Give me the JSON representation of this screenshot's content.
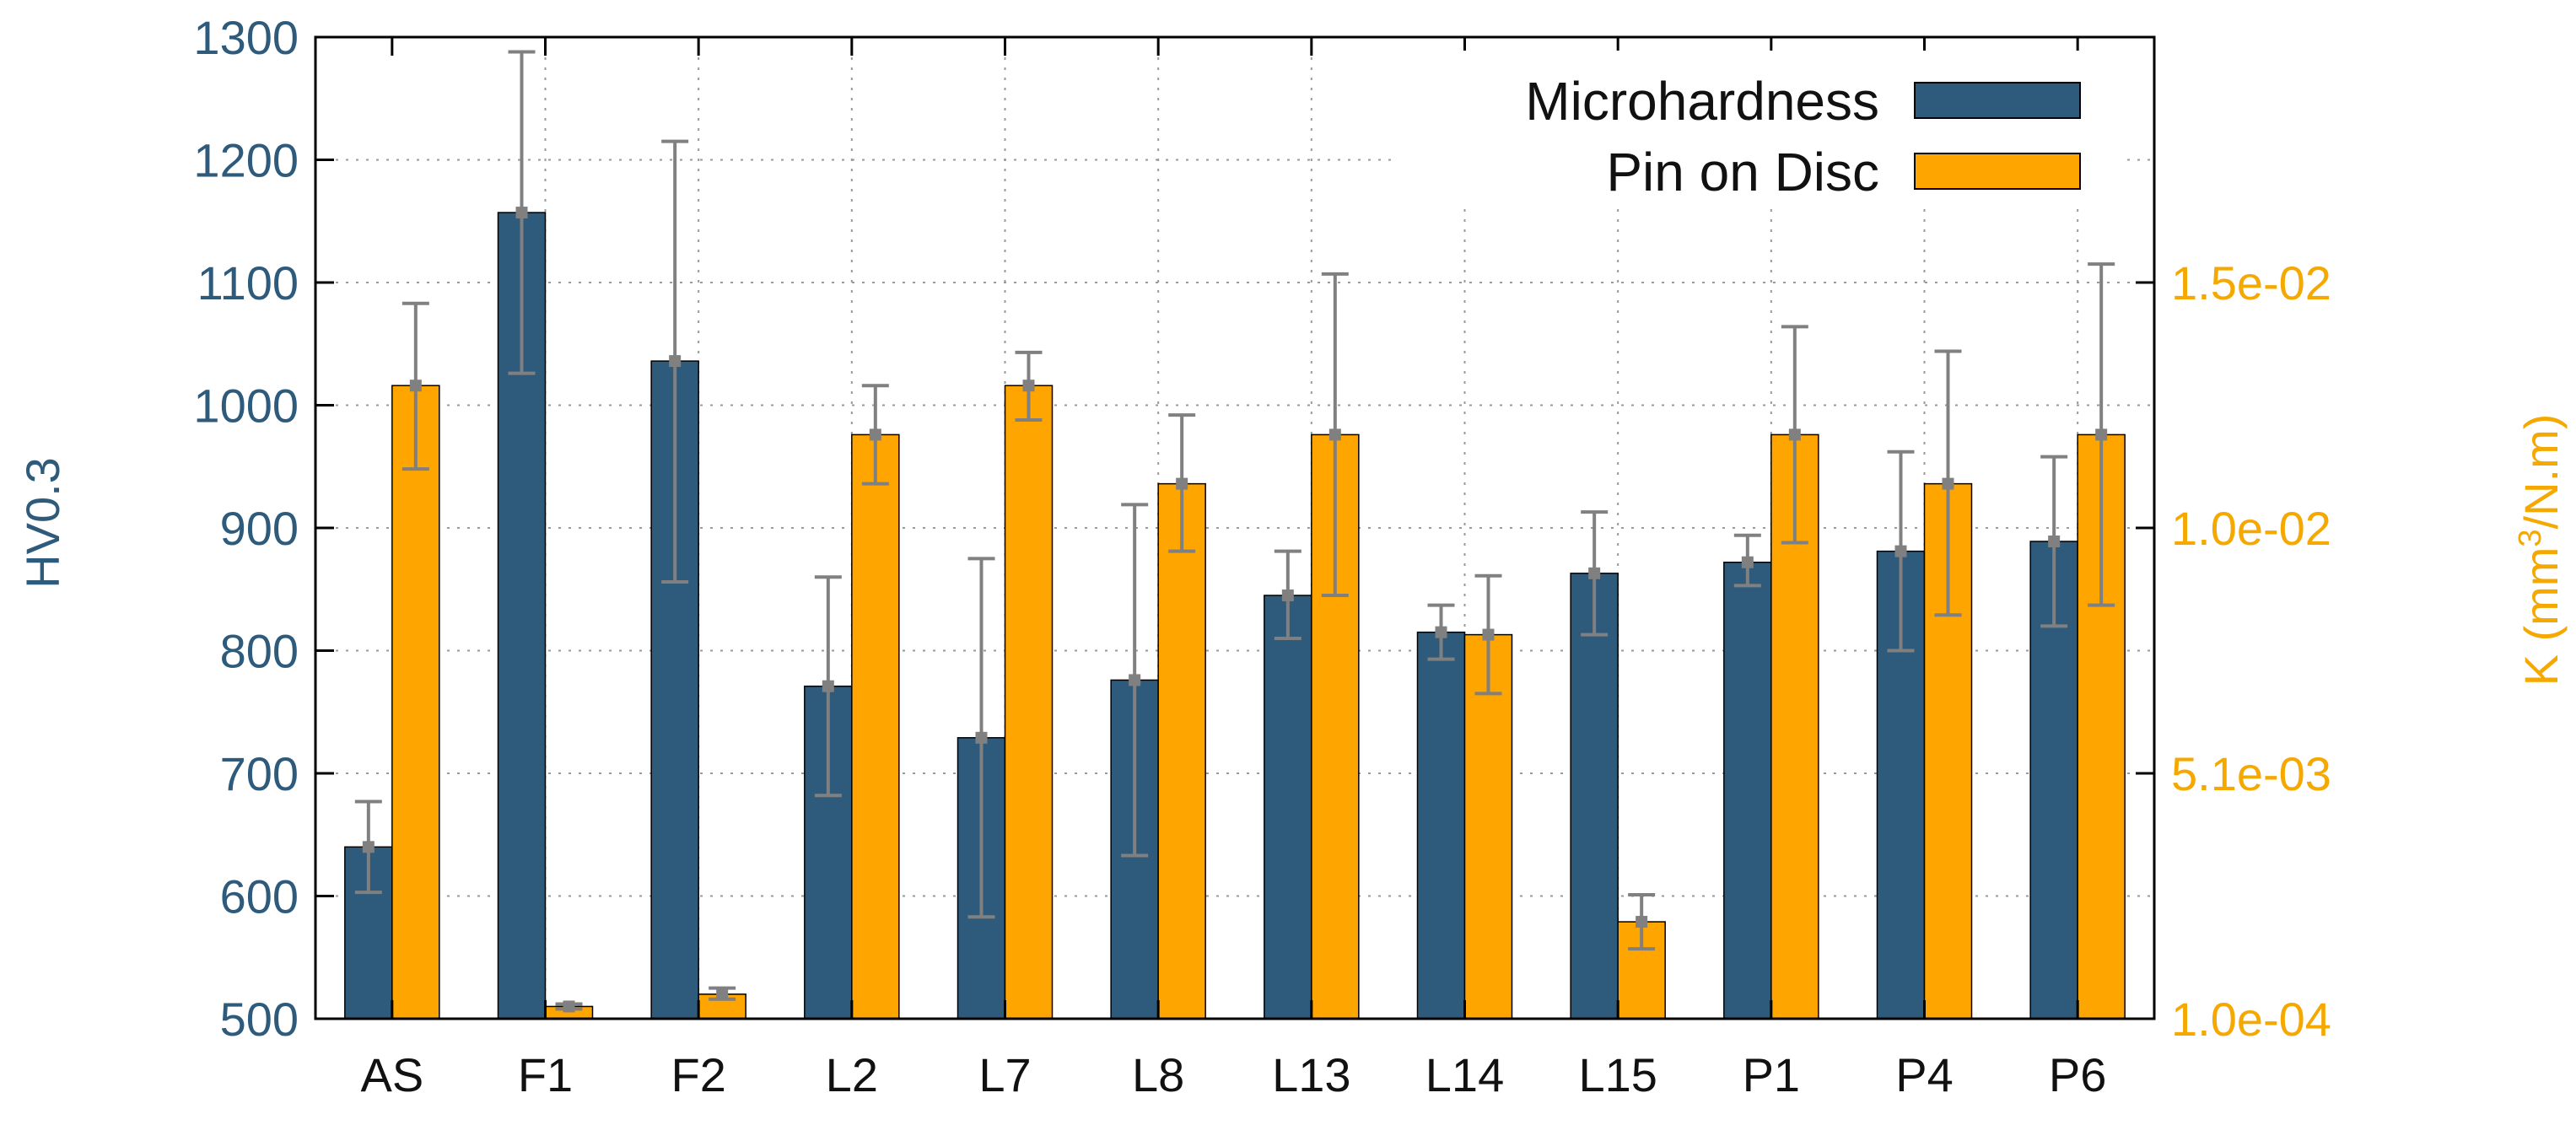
{
  "chart_data": {
    "type": "bar",
    "title": "",
    "categories": [
      "AS",
      "F1",
      "F2",
      "L2",
      "L7",
      "L8",
      "L13",
      "L14",
      "L15",
      "P1",
      "P4",
      "P6"
    ],
    "series": [
      {
        "name": "Microhardness",
        "axis": "left",
        "color": "#2e5a7c",
        "values": [
          640,
          1157,
          1036,
          771,
          729,
          776,
          845,
          815,
          863,
          872,
          881,
          889
        ],
        "err_low": [
          603,
          1026,
          856,
          682,
          583,
          633,
          810,
          793,
          813,
          853,
          800,
          820
        ],
        "err_high": [
          677,
          1288,
          1215,
          860,
          875,
          919,
          881,
          837,
          913,
          894,
          962,
          958
        ]
      },
      {
        "name": "Pin on Disc",
        "axis": "right",
        "color": "#ffa500",
        "values": [
          1016,
          510,
          520,
          976,
          1016,
          936,
          976,
          813,
          579,
          976,
          936,
          976
        ],
        "err_low": [
          948,
          508,
          516,
          936,
          988,
          881,
          845,
          765,
          557,
          888,
          829,
          837
        ],
        "err_high": [
          1083,
          512,
          525,
          1016,
          1043,
          992,
          1107,
          861,
          601,
          1064,
          1044,
          1115
        ]
      }
    ],
    "y_left": {
      "label": "HV0.3",
      "lim": [
        500,
        1300
      ],
      "ticks": [
        "500",
        "600",
        "700",
        "800",
        "900",
        "1000",
        "1100",
        "1200",
        "1300"
      ]
    },
    "y_right": {
      "label": "K (mm³/N.m)",
      "label_parts": [
        "K (mm",
        "3",
        "/N.m)"
      ],
      "ticks": [
        "1.0e-04",
        "5.1e-03",
        "1.0e-02",
        "1.5e-02"
      ],
      "tick_positions_left_units": [
        500,
        700,
        900,
        1100
      ]
    },
    "grid": true,
    "legend_position": "top-right",
    "legend": [
      "Microhardness",
      "Pin on Disc"
    ]
  }
}
